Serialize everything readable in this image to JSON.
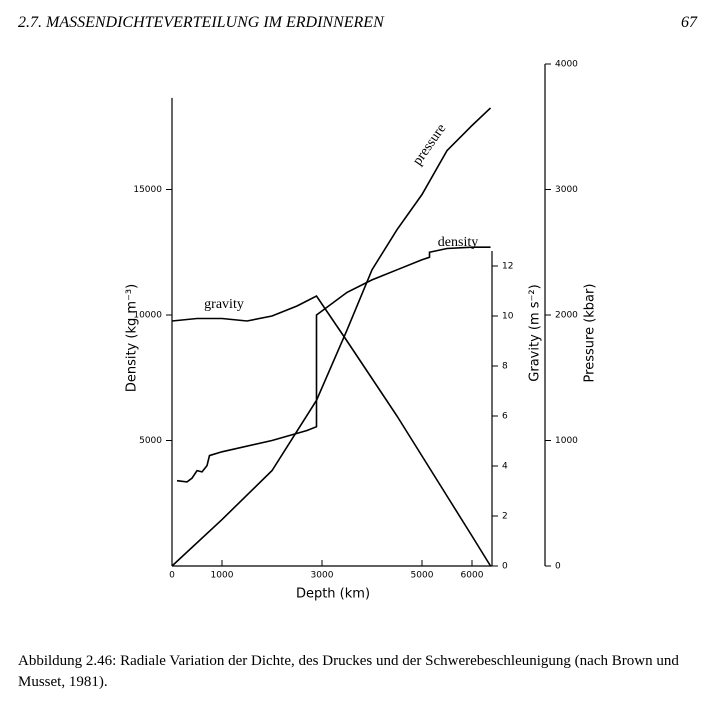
{
  "header": {
    "section": "2.7. MASSENDICHTEVERTEILUNG IM ERDINNEREN",
    "page": "67"
  },
  "chart_data": {
    "type": "line",
    "x_label": "Depth (km)",
    "y_label": "Density (kg m⁻³)",
    "y2_label": "Gravity (m s⁻²)",
    "y3_label": "Pressure (kbar)",
    "xlim": [
      0,
      6400
    ],
    "xticks": [
      0,
      1000,
      3000,
      5000,
      6000
    ],
    "ylim": [
      0,
      18650
    ],
    "yticks": [
      5000,
      10000,
      15000
    ],
    "y2lim": [
      0,
      12.6
    ],
    "y2ticks": [
      0,
      2,
      4,
      6,
      8,
      10,
      12
    ],
    "y3lim": [
      0,
      4000
    ],
    "y3ticks": [
      0,
      1000,
      2000,
      3000,
      4000
    ],
    "series": [
      {
        "name": "density",
        "color": "#000",
        "axis": "y",
        "x": [
          100,
          300,
          400,
          500,
          600,
          700,
          750,
          1000,
          2000,
          2700,
          2890,
          2890,
          3500,
          4000,
          4500,
          5000,
          5150,
          5150,
          5500,
          6000,
          6371
        ],
        "values": [
          3400,
          3350,
          3500,
          3800,
          3750,
          4000,
          4400,
          4550,
          5000,
          5400,
          5550,
          10000,
          10900,
          11400,
          11800,
          12200,
          12300,
          12500,
          12650,
          12700,
          12700
        ]
      },
      {
        "name": "gravity",
        "color": "#000",
        "axis": "y2",
        "x": [
          0,
          500,
          1000,
          1500,
          2000,
          2500,
          2890,
          3500,
          4000,
          4500,
          5000,
          5500,
          6000,
          6371
        ],
        "values": [
          9.8,
          9.9,
          9.9,
          9.8,
          10.0,
          10.4,
          10.8,
          9.0,
          7.5,
          6.0,
          4.4,
          2.8,
          1.2,
          0
        ]
      },
      {
        "name": "pressure",
        "color": "#000",
        "axis": "y3",
        "x": [
          0,
          1000,
          2000,
          2890,
          3500,
          4000,
          4500,
          5000,
          5500,
          6000,
          6371
        ],
        "values": [
          0,
          370,
          760,
          1320,
          1880,
          2360,
          2680,
          2960,
          3310,
          3510,
          3650
        ]
      }
    ]
  },
  "caption": {
    "label": "Abbildung 2.46:",
    "text": "Radiale Variation der Dichte, des Druckes und der Schwerebeschleunigung (nach Brown und Musset, 1981)."
  }
}
